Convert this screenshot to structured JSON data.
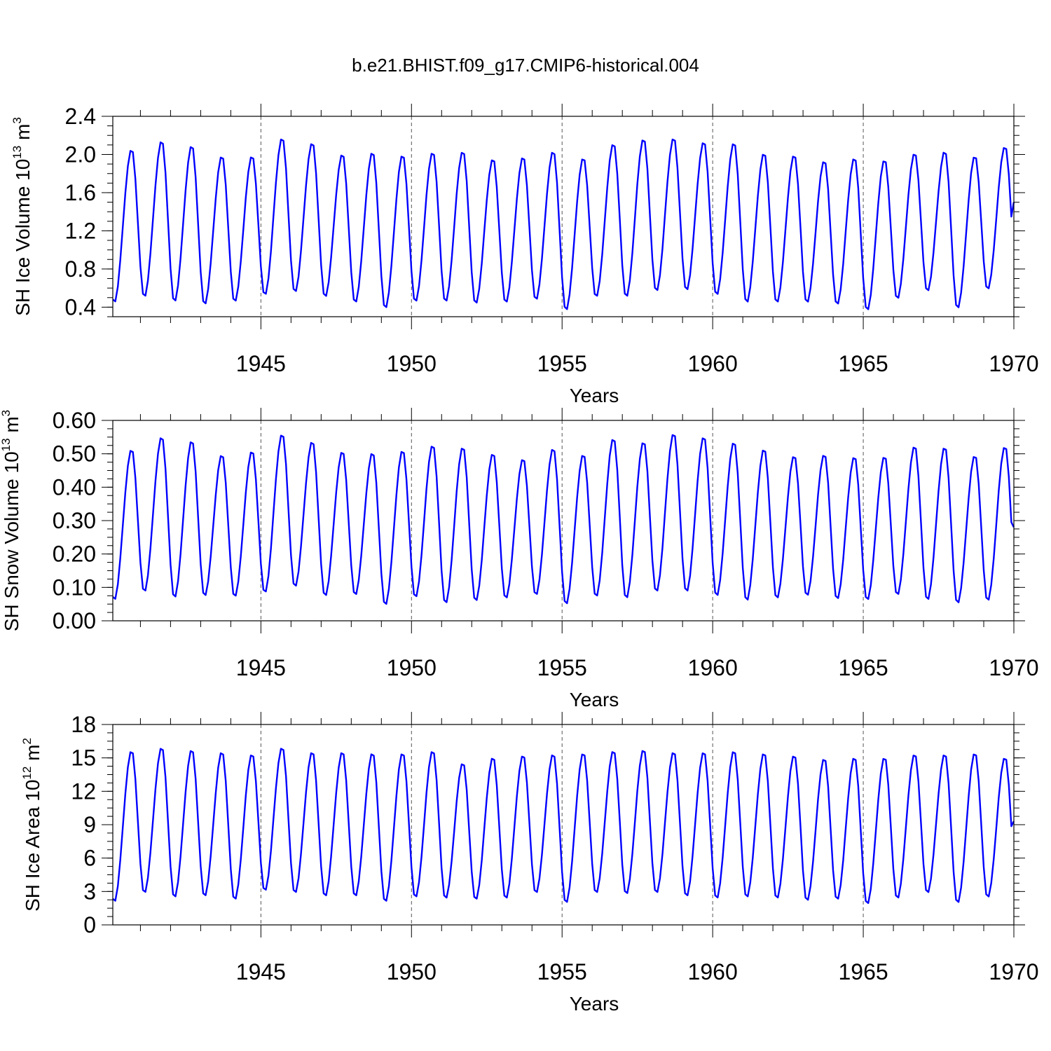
{
  "title": "b.e21.BHIST.f09_g17.CMIP6-historical.004",
  "colors": {
    "series": "#0000ff",
    "axis": "#000000",
    "refline": "#555555"
  },
  "chart_data": [
    {
      "type": "line",
      "name": "ice-volume",
      "ylabel": {
        "text": "SH Ice Volume",
        "base": "10",
        "exp": "13",
        "unit": "m",
        "unit_exp": "3"
      },
      "xlabel": "Years",
      "xlim": [
        1940.083,
        1970.0
      ],
      "ylim": [
        0.3,
        2.4
      ],
      "ytick_values": [
        0.4,
        0.8,
        1.2,
        1.6,
        2.0,
        2.4
      ],
      "ytick_labels": [
        "0.4",
        "0.8",
        "1.2",
        "1.6",
        "2.0",
        "2.4"
      ],
      "xtick_values": [
        1945,
        1950,
        1955,
        1960,
        1965,
        1970
      ],
      "xtick_labels": [
        "1945",
        "1950",
        "1955",
        "1960",
        "1965",
        "1970"
      ],
      "series": {
        "name": "SH Ice Volume",
        "start_year": 1940.083,
        "step": 0.08333,
        "annual_min": [
          0.44,
          0.5,
          0.45,
          0.42,
          0.45,
          0.52,
          0.55,
          0.5,
          0.44,
          0.38,
          0.45,
          0.45,
          0.43,
          0.44,
          0.47,
          0.36,
          0.5,
          0.5,
          0.56,
          0.57,
          0.52,
          0.44,
          0.44,
          0.44,
          0.42,
          0.36,
          0.48,
          0.56,
          0.38,
          0.58
        ],
        "annual_max": [
          2.06,
          2.15,
          2.1,
          1.99,
          1.99,
          2.18,
          2.13,
          2.01,
          2.03,
          2.0,
          2.03,
          2.04,
          1.96,
          1.98,
          2.04,
          1.97,
          2.12,
          2.17,
          2.18,
          2.14,
          2.13,
          2.02,
          2.0,
          1.94,
          1.97,
          1.95,
          2.02,
          2.04,
          1.99,
          2.09
        ],
        "end_value": 1.5
      }
    },
    {
      "type": "line",
      "name": "snow-volume",
      "ylabel": {
        "text": "SH Snow Volume",
        "base": "10",
        "exp": "13",
        "unit": "m",
        "unit_exp": "3"
      },
      "xlabel": "Years",
      "xlim": [
        1940.083,
        1970.0
      ],
      "ylim": [
        0.0,
        0.6
      ],
      "ytick_values": [
        0.0,
        0.1,
        0.2,
        0.3,
        0.4,
        0.5,
        0.6
      ],
      "ytick_labels": [
        "0.00",
        "0.10",
        "0.20",
        "0.30",
        "0.40",
        "0.50",
        "0.60"
      ],
      "xtick_values": [
        1945,
        1950,
        1955,
        1960,
        1965,
        1970
      ],
      "xtick_labels": [
        "1945",
        "1950",
        "1955",
        "1960",
        "1965",
        "1970"
      ],
      "series": {
        "name": "SH Snow Volume",
        "start_year": 1940.083,
        "step": 0.08333,
        "annual_min": [
          0.06,
          0.085,
          0.067,
          0.072,
          0.07,
          0.082,
          0.1,
          0.072,
          0.075,
          0.045,
          0.068,
          0.05,
          0.057,
          0.065,
          0.075,
          0.047,
          0.07,
          0.065,
          0.085,
          0.085,
          0.072,
          0.058,
          0.065,
          0.073,
          0.063,
          0.06,
          0.075,
          0.06,
          0.05,
          0.058
        ],
        "annual_max": [
          0.515,
          0.553,
          0.541,
          0.499,
          0.51,
          0.561,
          0.539,
          0.509,
          0.505,
          0.512,
          0.528,
          0.522,
          0.503,
          0.487,
          0.518,
          0.5,
          0.548,
          0.538,
          0.563,
          0.553,
          0.537,
          0.516,
          0.496,
          0.5,
          0.493,
          0.494,
          0.525,
          0.522,
          0.497,
          0.524
        ],
        "end_value": 0.28
      }
    },
    {
      "type": "line",
      "name": "ice-area",
      "ylabel": {
        "text": "SH Ice Area",
        "base": "10",
        "exp": "12",
        "unit": "m",
        "unit_exp": "2"
      },
      "xlabel": "Years",
      "xlim": [
        1940.083,
        1970.0
      ],
      "ylim": [
        0,
        18
      ],
      "ytick_values": [
        0,
        3,
        6,
        9,
        12,
        15,
        18
      ],
      "ytick_labels": [
        "0",
        "3",
        "6",
        "9",
        "12",
        "15",
        "18"
      ],
      "xtick_values": [
        1945,
        1950,
        1955,
        1960,
        1965,
        1970
      ],
      "xtick_labels": [
        "1945",
        "1950",
        "1955",
        "1960",
        "1965",
        "1970"
      ],
      "series": {
        "name": "SH Ice Area",
        "start_year": 1940.083,
        "step": 0.08333,
        "annual_min": [
          2.0,
          2.8,
          2.4,
          2.5,
          2.2,
          3.0,
          2.8,
          2.5,
          2.5,
          2.0,
          2.4,
          2.3,
          2.2,
          2.3,
          2.8,
          1.9,
          2.8,
          2.7,
          2.8,
          2.5,
          2.3,
          2.4,
          2.3,
          2.1,
          2.2,
          1.8,
          2.3,
          2.8,
          1.9,
          2.4
        ],
        "annual_max": [
          15.7,
          16.0,
          15.8,
          15.6,
          15.4,
          16.0,
          15.6,
          15.6,
          15.5,
          15.5,
          15.7,
          14.6,
          15.1,
          15.3,
          15.4,
          15.5,
          15.7,
          15.8,
          15.6,
          15.6,
          15.7,
          15.5,
          15.3,
          15.0,
          15.1,
          15.1,
          15.4,
          15.4,
          15.5,
          15.1
        ],
        "end_value": 9.3
      }
    }
  ]
}
